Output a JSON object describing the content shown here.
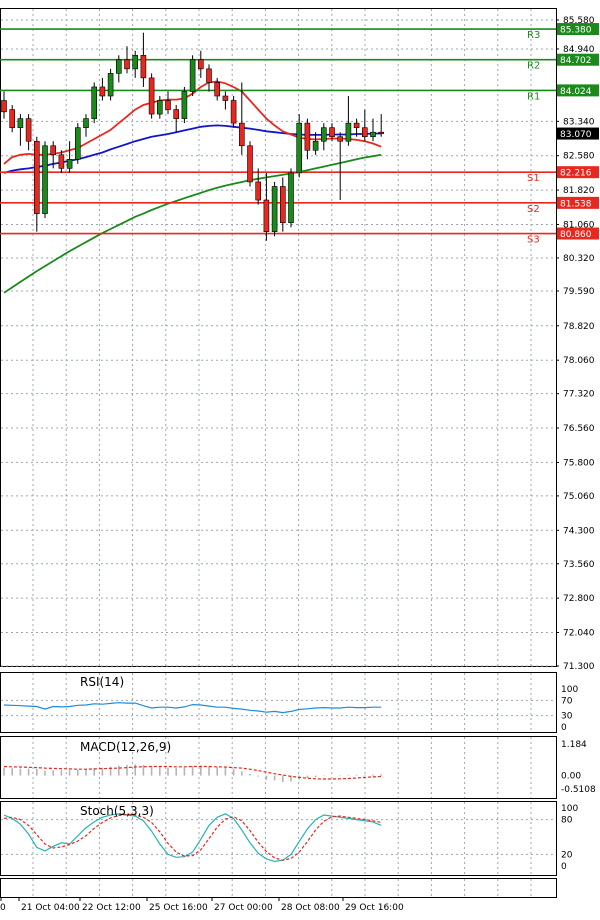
{
  "chart_data": [
    {
      "panel": "price",
      "type": "candlestick",
      "y_ticks": [
        85.58,
        84.94,
        83.34,
        82.58,
        81.82,
        81.06,
        80.32,
        79.59,
        78.82,
        78.06,
        77.32,
        76.56,
        75.8,
        75.06,
        74.3,
        73.56,
        72.8,
        72.04,
        71.3
      ],
      "ylim": [
        71.3,
        85.6
      ],
      "grid": true,
      "levels": [
        {
          "name": "R3",
          "value": 85.38,
          "label": "85.380",
          "color": "#1a8a1a"
        },
        {
          "name": "R2",
          "value": 84.702,
          "label": "84.702",
          "color": "#1a8a1a"
        },
        {
          "name": "R1",
          "value": 84.024,
          "label": "84.024",
          "color": "#1a8a1a"
        },
        {
          "name": "S1",
          "value": 82.216,
          "label": "82.216",
          "color": "#e8281e"
        },
        {
          "name": "S2",
          "value": 81.538,
          "label": "81.538",
          "color": "#e8281e"
        },
        {
          "name": "S3",
          "value": 80.86,
          "label": "80.860",
          "color": "#e8281e"
        }
      ],
      "current_price": {
        "value": 83.07,
        "label": "83.070"
      },
      "candles": [
        [
          83.8,
          84.0,
          83.4,
          83.55
        ],
        [
          83.6,
          83.7,
          83.1,
          83.2
        ],
        [
          83.2,
          83.5,
          82.8,
          83.4
        ],
        [
          83.4,
          83.5,
          82.7,
          82.9
        ],
        [
          82.9,
          83.0,
          80.9,
          81.3
        ],
        [
          81.3,
          82.9,
          81.2,
          82.8
        ],
        [
          82.8,
          82.9,
          82.3,
          82.6
        ],
        [
          82.6,
          82.7,
          82.2,
          82.3
        ],
        [
          82.3,
          82.9,
          82.2,
          82.5
        ],
        [
          82.5,
          83.3,
          82.4,
          83.2
        ],
        [
          83.2,
          83.5,
          83.0,
          83.4
        ],
        [
          83.4,
          84.2,
          83.3,
          84.1
        ],
        [
          84.1,
          84.3,
          83.8,
          83.9
        ],
        [
          83.9,
          84.5,
          83.8,
          84.4
        ],
        [
          84.4,
          84.8,
          84.2,
          84.7
        ],
        [
          84.7,
          85.0,
          84.4,
          84.5
        ],
        [
          84.5,
          84.9,
          84.3,
          84.8
        ],
        [
          84.8,
          85.3,
          84.1,
          84.3
        ],
        [
          84.3,
          84.4,
          83.4,
          83.5
        ],
        [
          83.5,
          83.9,
          83.4,
          83.8
        ],
        [
          83.8,
          84.0,
          83.5,
          83.6
        ],
        [
          83.6,
          83.7,
          83.1,
          83.4
        ],
        [
          83.4,
          84.1,
          83.3,
          84.0
        ],
        [
          84.0,
          84.8,
          83.9,
          84.7
        ],
        [
          84.7,
          84.9,
          84.3,
          84.5
        ],
        [
          84.5,
          84.6,
          84.0,
          84.2
        ],
        [
          84.2,
          84.3,
          83.8,
          83.9
        ],
        [
          83.9,
          84.0,
          83.6,
          83.8
        ],
        [
          83.8,
          83.9,
          83.2,
          83.3
        ],
        [
          83.3,
          84.2,
          82.6,
          82.8
        ],
        [
          82.8,
          82.9,
          81.9,
          82.0
        ],
        [
          82.0,
          82.3,
          81.5,
          81.6
        ],
        [
          81.6,
          82.2,
          80.7,
          80.9
        ],
        [
          80.9,
          82.0,
          80.8,
          81.9
        ],
        [
          81.9,
          82.1,
          80.9,
          81.1
        ],
        [
          81.1,
          82.3,
          81.0,
          82.2
        ],
        [
          82.2,
          83.5,
          82.1,
          83.3
        ],
        [
          83.3,
          83.4,
          82.5,
          82.7
        ],
        [
          82.7,
          83.1,
          82.6,
          82.9
        ],
        [
          82.9,
          83.3,
          82.7,
          83.2
        ],
        [
          83.2,
          83.3,
          82.9,
          83.0
        ],
        [
          83.0,
          83.1,
          81.6,
          82.9
        ],
        [
          82.9,
          83.9,
          82.8,
          83.3
        ],
        [
          83.3,
          83.4,
          83.0,
          83.2
        ],
        [
          83.2,
          83.6,
          82.9,
          83.0
        ],
        [
          83.0,
          83.4,
          82.9,
          83.1
        ],
        [
          83.1,
          83.5,
          83.0,
          83.07
        ]
      ],
      "candle_fields": [
        "open",
        "high",
        "low",
        "close"
      ],
      "ma_fast": {
        "color": "#e8281e",
        "values": [
          82.4,
          82.55,
          82.6,
          82.62,
          82.6,
          82.6,
          82.62,
          82.65,
          82.7,
          82.75,
          82.85,
          82.95,
          83.05,
          83.15,
          83.3,
          83.45,
          83.6,
          83.7,
          83.75,
          83.8,
          83.82,
          83.82,
          83.85,
          83.95,
          84.1,
          84.2,
          84.22,
          84.18,
          84.1,
          84.0,
          83.8,
          83.6,
          83.4,
          83.25,
          83.12,
          83.05,
          82.98,
          82.95,
          82.94,
          82.95,
          82.96,
          82.96,
          82.95,
          82.93,
          82.9,
          82.85,
          82.78
        ]
      },
      "ma_mid": {
        "color": "#1414c8",
        "values": [
          82.2,
          82.25,
          82.28,
          82.3,
          82.33,
          82.36,
          82.4,
          82.43,
          82.47,
          82.5,
          82.55,
          82.6,
          82.65,
          82.72,
          82.78,
          82.84,
          82.9,
          82.95,
          83.0,
          83.03,
          83.06,
          83.1,
          83.14,
          83.18,
          83.22,
          83.24,
          83.25,
          83.24,
          83.22,
          83.2,
          83.18,
          83.15,
          83.12,
          83.1,
          83.08,
          83.06,
          83.05,
          83.04,
          83.04,
          83.04,
          83.05,
          83.05,
          83.05,
          83.06,
          83.06,
          83.07,
          83.07
        ]
      },
      "ma_slow": {
        "color": "#1a8a1a",
        "values": [
          79.55,
          79.67,
          79.79,
          79.91,
          80.03,
          80.14,
          80.25,
          80.36,
          80.47,
          80.57,
          80.67,
          80.77,
          80.87,
          80.96,
          81.05,
          81.14,
          81.23,
          81.3,
          81.38,
          81.45,
          81.52,
          81.58,
          81.64,
          81.7,
          81.76,
          81.82,
          81.87,
          81.92,
          81.96,
          82.0,
          82.04,
          82.07,
          82.1,
          82.13,
          82.16,
          82.19,
          82.22,
          82.26,
          82.3,
          82.34,
          82.38,
          82.42,
          82.46,
          82.5,
          82.54,
          82.57,
          82.6
        ]
      }
    },
    {
      "panel": "rsi",
      "type": "line",
      "title": "RSI(14)",
      "y_ticks": [
        100,
        70,
        30,
        0
      ],
      "ylim": [
        0,
        100
      ],
      "color": "#1e8cdc",
      "values": [
        58,
        57,
        56,
        55,
        54,
        47,
        54,
        53,
        54,
        57,
        58,
        61,
        60,
        62,
        64,
        63,
        63,
        56,
        50,
        52,
        52,
        50,
        53,
        59,
        58,
        55,
        52,
        52,
        49,
        47,
        44,
        42,
        39,
        41,
        38,
        41,
        46,
        48,
        50,
        51,
        50,
        50,
        52,
        51,
        51,
        52,
        52
      ]
    },
    {
      "panel": "macd",
      "type": "bar",
      "title": "MACD(12,26,9)",
      "y_ticks": [
        1.184,
        0.0,
        -0.5108
      ],
      "ylim": [
        -0.5108,
        1.184
      ],
      "histogram_color": "#b4b4b4",
      "signal_color": "#e8281e",
      "histogram": [
        0.3,
        0.28,
        0.26,
        0.26,
        0.25,
        0.18,
        0.2,
        0.2,
        0.2,
        0.22,
        0.24,
        0.28,
        0.3,
        0.33,
        0.37,
        0.4,
        0.42,
        0.4,
        0.34,
        0.32,
        0.3,
        0.28,
        0.3,
        0.36,
        0.38,
        0.36,
        0.32,
        0.3,
        0.24,
        0.16,
        0.06,
        -0.04,
        -0.16,
        -0.18,
        -0.24,
        -0.22,
        -0.14,
        -0.1,
        -0.06,
        -0.02,
        0.0,
        -0.02,
        0.02,
        0.03,
        0.03,
        0.04,
        0.05
      ],
      "signal": [
        0.34,
        0.33,
        0.32,
        0.31,
        0.3,
        0.28,
        0.27,
        0.26,
        0.25,
        0.24,
        0.24,
        0.25,
        0.26,
        0.27,
        0.28,
        0.3,
        0.32,
        0.33,
        0.34,
        0.34,
        0.34,
        0.33,
        0.33,
        0.34,
        0.34,
        0.34,
        0.33,
        0.32,
        0.3,
        0.28,
        0.24,
        0.19,
        0.13,
        0.07,
        0.02,
        -0.03,
        -0.07,
        -0.1,
        -0.12,
        -0.13,
        -0.13,
        -0.12,
        -0.11,
        -0.09,
        -0.07,
        -0.05,
        -0.03
      ]
    },
    {
      "panel": "stochastic",
      "type": "line",
      "title": "Stoch(5,3,3)",
      "y_ticks": [
        100,
        80,
        20,
        0
      ],
      "ylim": [
        0,
        100
      ],
      "main_color": "#28b4b4",
      "signal_color": "#e8281e",
      "main": [
        88,
        82,
        72,
        55,
        32,
        26,
        34,
        40,
        38,
        52,
        66,
        76,
        84,
        88,
        90,
        88,
        86,
        78,
        60,
        38,
        20,
        15,
        16,
        24,
        46,
        70,
        84,
        90,
        82,
        62,
        40,
        22,
        12,
        8,
        10,
        20,
        42,
        64,
        80,
        88,
        86,
        84,
        82,
        80,
        78,
        76,
        70
      ],
      "signal": [
        82,
        84,
        80,
        70,
        54,
        38,
        31,
        33,
        37,
        43,
        52,
        65,
        75,
        83,
        87,
        89,
        88,
        84,
        75,
        59,
        39,
        24,
        17,
        18,
        28,
        47,
        67,
        81,
        85,
        78,
        61,
        41,
        25,
        14,
        10,
        13,
        24,
        42,
        62,
        77,
        85,
        86,
        84,
        82,
        80,
        78,
        75
      ]
    }
  ],
  "x_axis_labels": [
    "0",
    "21 Oct 04:00",
    "22 Oct 12:00",
    "25 Oct 16:00",
    "27 Oct 00:00",
    "28 Oct 08:00",
    "29 Oct 16:00"
  ],
  "colors": {
    "bull": "#1a8a1a",
    "bear": "#e8281e",
    "grid": "#9aa7b3",
    "border": "#000000",
    "price_tag_bg": "#000000",
    "price_tag_fg": "#ffffff"
  }
}
